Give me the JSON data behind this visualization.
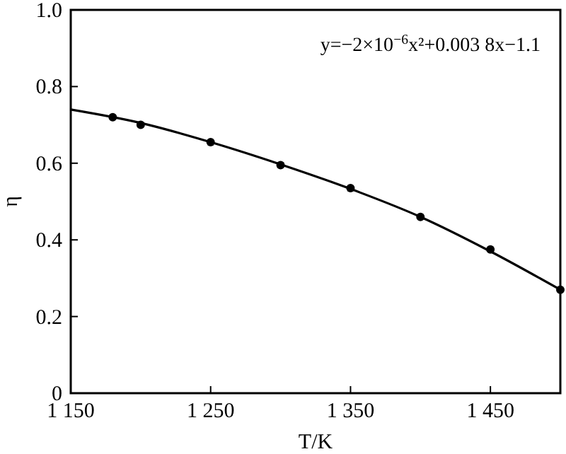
{
  "chart_data": {
    "type": "scatter",
    "xlabel": "T/K",
    "ylabel": "η",
    "marker": "circle",
    "grid": false,
    "xlim": [
      1150,
      1500
    ],
    "xticks": [
      {
        "value": 1150,
        "label": "1 150"
      },
      {
        "value": 1250,
        "label": "1 250"
      },
      {
        "value": 1350,
        "label": "1 350"
      },
      {
        "value": 1450,
        "label": "1 450"
      }
    ],
    "ylim": [
      0,
      1
    ],
    "yticks": [
      0,
      0.2,
      0.4,
      0.6,
      0.8,
      {
        "value": 1,
        "label": "1.0"
      }
    ],
    "annotations": [
      "y=−2×10$^{−6}$x²+0.003 8x−1.1"
    ],
    "series": [
      {
        "color": "#000000",
        "x": [
          1180,
          1200,
          1250,
          1300,
          1350,
          1400,
          1450,
          1500
        ],
        "values": [
          0.72,
          0.7,
          0.655,
          0.595,
          0.535,
          0.46,
          0.375,
          0.27
        ]
      },
      {
        "type": "line",
        "color": "#000000",
        "line_style": "solid",
        "marker": "none",
        "x": [
          1150,
          1200,
          1250,
          1300,
          1350,
          1400,
          1450,
          1500
        ],
        "values": [
          0.74,
          0.705,
          0.655,
          0.597,
          0.533,
          0.46,
          0.37,
          0.27
        ]
      }
    ]
  }
}
